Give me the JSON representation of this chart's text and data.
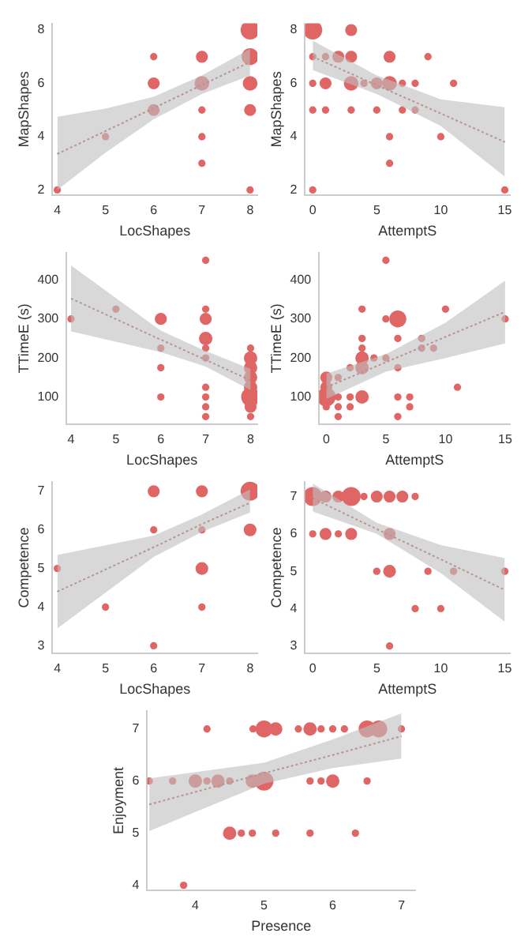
{
  "chart_data": [
    {
      "type": "bubble",
      "xlabel": "LocShapes",
      "ylabel": "MapShapes",
      "xlim": [
        3.9,
        8.15
      ],
      "xticks": [
        4,
        5,
        6,
        7,
        8
      ],
      "ylim": [
        1.8,
        8.25
      ],
      "yticks": [
        2,
        4,
        6,
        8
      ],
      "series": [
        {
          "type": "bubble",
          "color": "#e06666",
          "x": [
            4,
            5,
            6,
            6,
            6,
            7,
            7,
            7,
            7,
            7,
            8,
            8,
            8,
            8,
            8
          ],
          "values": [
            2,
            4,
            7,
            6,
            5,
            7,
            6,
            5,
            4,
            3,
            8,
            7,
            6,
            5,
            2
          ],
          "sizes": [
            0.15,
            0.15,
            0.15,
            0.4,
            0.4,
            0.4,
            0.6,
            0.15,
            0.15,
            0.15,
            1,
            0.8,
            0.6,
            0.4,
            0.15
          ]
        },
        {
          "type": "line",
          "color": "#b05555",
          "line_style": "dotted",
          "x": [
            4,
            5,
            6,
            7,
            8
          ],
          "values": [
            3.35,
            4.21,
            5.07,
            5.94,
            6.8
          ],
          "lower": [
            2.0,
            3.4,
            4.65,
            5.6,
            6.3
          ],
          "upper": [
            4.75,
            5.05,
            5.5,
            6.3,
            7.3
          ]
        }
      ]
    },
    {
      "type": "bubble",
      "xlabel": "AttemptS",
      "ylabel": "MapShapes",
      "xlim": [
        -0.6,
        15.4
      ],
      "xticks": [
        0,
        5,
        10,
        15
      ],
      "ylim": [
        1.8,
        8.25
      ],
      "yticks": [
        2,
        4,
        6,
        8
      ],
      "series": [
        {
          "type": "bubble",
          "color": "#e06666",
          "x": [
            0,
            0,
            0,
            0,
            0,
            1,
            1,
            1,
            2,
            3,
            3,
            3,
            3,
            4,
            5,
            5,
            6,
            6,
            6,
            6,
            7,
            7,
            8,
            8,
            9,
            10,
            11,
            15
          ],
          "values": [
            8,
            7,
            6,
            5,
            2,
            7,
            6,
            5,
            7,
            8,
            7,
            6,
            5,
            6,
            6,
            5,
            7,
            6,
            4,
            3,
            6,
            5,
            6,
            5,
            7,
            4,
            6,
            2
          ],
          "sizes": [
            1,
            0.15,
            0.15,
            0.15,
            0.15,
            0.15,
            0.4,
            0.15,
            0.4,
            0.4,
            0.4,
            0.6,
            0.15,
            0.15,
            0.4,
            0.15,
            0.4,
            0.6,
            0.15,
            0.15,
            0.15,
            0.15,
            0.15,
            0.15,
            0.15,
            0.15,
            0.15,
            0.15
          ]
        },
        {
          "type": "line",
          "color": "#b05555",
          "line_style": "dotted",
          "x": [
            0,
            5,
            10,
            15
          ],
          "values": [
            7.0,
            5.93,
            4.87,
            3.8
          ],
          "lower": [
            6.5,
            5.6,
            4.4,
            2.5
          ],
          "upper": [
            7.6,
            6.3,
            5.4,
            5.1
          ]
        }
      ]
    },
    {
      "type": "bubble",
      "xlabel": "LocShapes",
      "ylabel": "TTimeE (s)",
      "xlim": [
        3.9,
        8.15
      ],
      "xticks": [
        4,
        5,
        6,
        7,
        8
      ],
      "ylim": [
        30,
        470
      ],
      "yticks": [
        100,
        200,
        300,
        400
      ],
      "series": [
        {
          "type": "bubble",
          "color": "#e06666",
          "x": [
            4,
            5,
            6,
            6,
            6,
            6,
            7,
            7,
            7,
            7,
            7,
            7,
            7,
            7,
            7,
            7,
            8,
            8,
            8,
            8,
            8,
            8,
            8,
            8
          ],
          "values": [
            300,
            325,
            300,
            225,
            175,
            100,
            450,
            325,
            300,
            250,
            225,
            200,
            125,
            100,
            75,
            50,
            225,
            200,
            175,
            150,
            125,
            100,
            75,
            50
          ],
          "sizes": [
            0.15,
            0.15,
            0.4,
            0.15,
            0.15,
            0.15,
            0.15,
            0.15,
            0.4,
            0.5,
            0.15,
            0.15,
            0.15,
            0.15,
            0.15,
            0.15,
            0.15,
            0.5,
            0.5,
            0.5,
            0.5,
            1,
            0.4,
            0.15
          ]
        },
        {
          "type": "line",
          "color": "#b05555",
          "line_style": "dotted",
          "x": [
            4,
            6,
            7,
            8
          ],
          "values": [
            352,
            247,
            195,
            143
          ],
          "lower": [
            268,
            215,
            178,
            118
          ],
          "upper": [
            437,
            270,
            218,
            172
          ]
        }
      ]
    },
    {
      "type": "bubble",
      "xlabel": "AttemptS",
      "ylabel": "TTimeE (s)",
      "xlim": [
        -0.6,
        15.4
      ],
      "xticks": [
        0,
        5,
        10,
        15
      ],
      "ylim": [
        30,
        470
      ],
      "yticks": [
        100,
        200,
        300,
        400
      ],
      "series": [
        {
          "type": "bubble",
          "color": "#e06666",
          "x": [
            0,
            0,
            0,
            0,
            1,
            1,
            1,
            1,
            2,
            2,
            2,
            3,
            3,
            3,
            3,
            3,
            3,
            4,
            5,
            5,
            5,
            6,
            6,
            6,
            6,
            6,
            7,
            7,
            8,
            8,
            9,
            10,
            11,
            15
          ],
          "values": [
            150,
            125,
            100,
            75,
            150,
            100,
            75,
            50,
            175,
            100,
            75,
            325,
            250,
            225,
            200,
            175,
            100,
            200,
            450,
            300,
            200,
            300,
            250,
            175,
            100,
            50,
            100,
            75,
            250,
            225,
            225,
            325,
            125,
            300
          ],
          "sizes": [
            0.4,
            0.4,
            1,
            0.15,
            0.15,
            0.15,
            0.15,
            0.15,
            0.15,
            0.15,
            0.15,
            0.15,
            0.15,
            0.15,
            0.5,
            0.5,
            0.5,
            0.15,
            0.15,
            0.15,
            0.15,
            0.8,
            0.15,
            0.15,
            0.15,
            0.15,
            0.15,
            0.15,
            0.15,
            0.15,
            0.15,
            0.15,
            0.15,
            0.15
          ]
        },
        {
          "type": "line",
          "color": "#b05555",
          "line_style": "dotted",
          "x": [
            0,
            5,
            10,
            15
          ],
          "values": [
            125,
            189,
            254,
            318
          ],
          "lower": [
            95,
            165,
            200,
            237
          ],
          "upper": [
            160,
            210,
            290,
            398
          ]
        }
      ]
    },
    {
      "type": "bubble",
      "xlabel": "LocShapes",
      "ylabel": "Competence",
      "xlim": [
        3.9,
        8.15
      ],
      "xticks": [
        4,
        5,
        6,
        7,
        8
      ],
      "ylim": [
        2.8,
        7.25
      ],
      "yticks": [
        3,
        4,
        5,
        6,
        7
      ],
      "series": [
        {
          "type": "bubble",
          "color": "#e06666",
          "x": [
            4,
            5,
            6,
            6,
            6,
            7,
            7,
            7,
            7,
            8,
            8
          ],
          "values": [
            5,
            4,
            7,
            6,
            3,
            7,
            6,
            5,
            4,
            7,
            6
          ],
          "sizes": [
            0.15,
            0.15,
            0.4,
            0.15,
            0.15,
            0.4,
            0.15,
            0.45,
            0.15,
            1,
            0.45
          ]
        },
        {
          "type": "line",
          "color": "#b05555",
          "line_style": "dotted",
          "x": [
            4,
            6,
            7,
            8
          ],
          "values": [
            4.4,
            5.55,
            6.15,
            6.7
          ],
          "lower": [
            3.45,
            5.3,
            5.95,
            6.45
          ],
          "upper": [
            5.35,
            5.85,
            6.4,
            7.05
          ]
        }
      ]
    },
    {
      "type": "bubble",
      "xlabel": "AttemptS",
      "ylabel": "Competence",
      "xlim": [
        -0.6,
        15.4
      ],
      "xticks": [
        0,
        5,
        10,
        15
      ],
      "ylim": [
        2.8,
        7.4
      ],
      "yticks": [
        3,
        4,
        5,
        6,
        7
      ],
      "series": [
        {
          "type": "bubble",
          "color": "#e06666",
          "x": [
            0,
            0,
            1,
            1,
            2,
            2,
            3,
            3,
            4,
            5,
            5,
            6,
            6,
            6,
            6,
            7,
            8,
            8,
            9,
            10,
            11,
            15
          ],
          "values": [
            7,
            6,
            7,
            6,
            7,
            6,
            7,
            6,
            7,
            7,
            5,
            7,
            6,
            5,
            3,
            7,
            7,
            4,
            5,
            4,
            5,
            5
          ],
          "sizes": [
            1,
            0.15,
            0.4,
            0.4,
            0.4,
            0.15,
            1,
            0.4,
            0.15,
            0.4,
            0.15,
            0.4,
            0.4,
            0.45,
            0.15,
            0.4,
            0.15,
            0.15,
            0.15,
            0.15,
            0.15,
            0.15
          ]
        },
        {
          "type": "line",
          "color": "#b05555",
          "line_style": "dotted",
          "x": [
            0,
            5,
            10,
            15
          ],
          "values": [
            6.95,
            6.13,
            5.32,
            4.5
          ],
          "lower": [
            6.6,
            6.0,
            4.95,
            3.65
          ],
          "upper": [
            7.35,
            6.3,
            5.7,
            5.35
          ]
        }
      ]
    },
    {
      "type": "bubble",
      "xlabel": "Presence",
      "ylabel": "Enjoyment",
      "xlim": [
        3.3,
        7.2
      ],
      "xticks": [
        4,
        5,
        6,
        7
      ],
      "ylim": [
        3.9,
        7.35
      ],
      "yticks": [
        4,
        5,
        6,
        7
      ],
      "series": [
        {
          "type": "bubble",
          "color": "#e06666",
          "x": [
            4.17,
            4.84,
            5.0,
            5.17,
            5.5,
            5.67,
            5.83,
            6.0,
            6.17,
            6.5,
            6.67,
            7.0,
            3.33,
            3.67,
            4.0,
            4.17,
            4.33,
            4.5,
            4.83,
            5.0,
            5.67,
            5.83,
            6.0,
            6.5,
            4.5,
            4.67,
            4.83,
            5.17,
            5.67,
            6.33,
            3.83
          ],
          "values": [
            7,
            7,
            7,
            7,
            7,
            7,
            7,
            7,
            7,
            7,
            7,
            7,
            6,
            6,
            6,
            6,
            6,
            6,
            6,
            6,
            6,
            6,
            6,
            6,
            5,
            5,
            5,
            5,
            5,
            5,
            4
          ],
          "sizes": [
            0.15,
            0.15,
            0.8,
            0.5,
            0.15,
            0.5,
            0.15,
            0.15,
            0.15,
            0.8,
            0.8,
            0.15,
            0.15,
            0.15,
            0.5,
            0.15,
            0.5,
            0.15,
            0.5,
            1,
            0.15,
            0.15,
            0.5,
            0.15,
            0.5,
            0.15,
            0.15,
            0.15,
            0.15,
            0.15,
            0.15
          ]
        },
        {
          "type": "line",
          "color": "#b05555",
          "line_style": "dotted",
          "x": [
            3.33,
            5.0,
            6.0,
            7.0
          ],
          "values": [
            5.55,
            6.15,
            6.5,
            6.86
          ],
          "lower": [
            5.04,
            5.95,
            6.25,
            6.43
          ],
          "upper": [
            6.05,
            6.35,
            6.8,
            7.3
          ]
        }
      ]
    }
  ]
}
